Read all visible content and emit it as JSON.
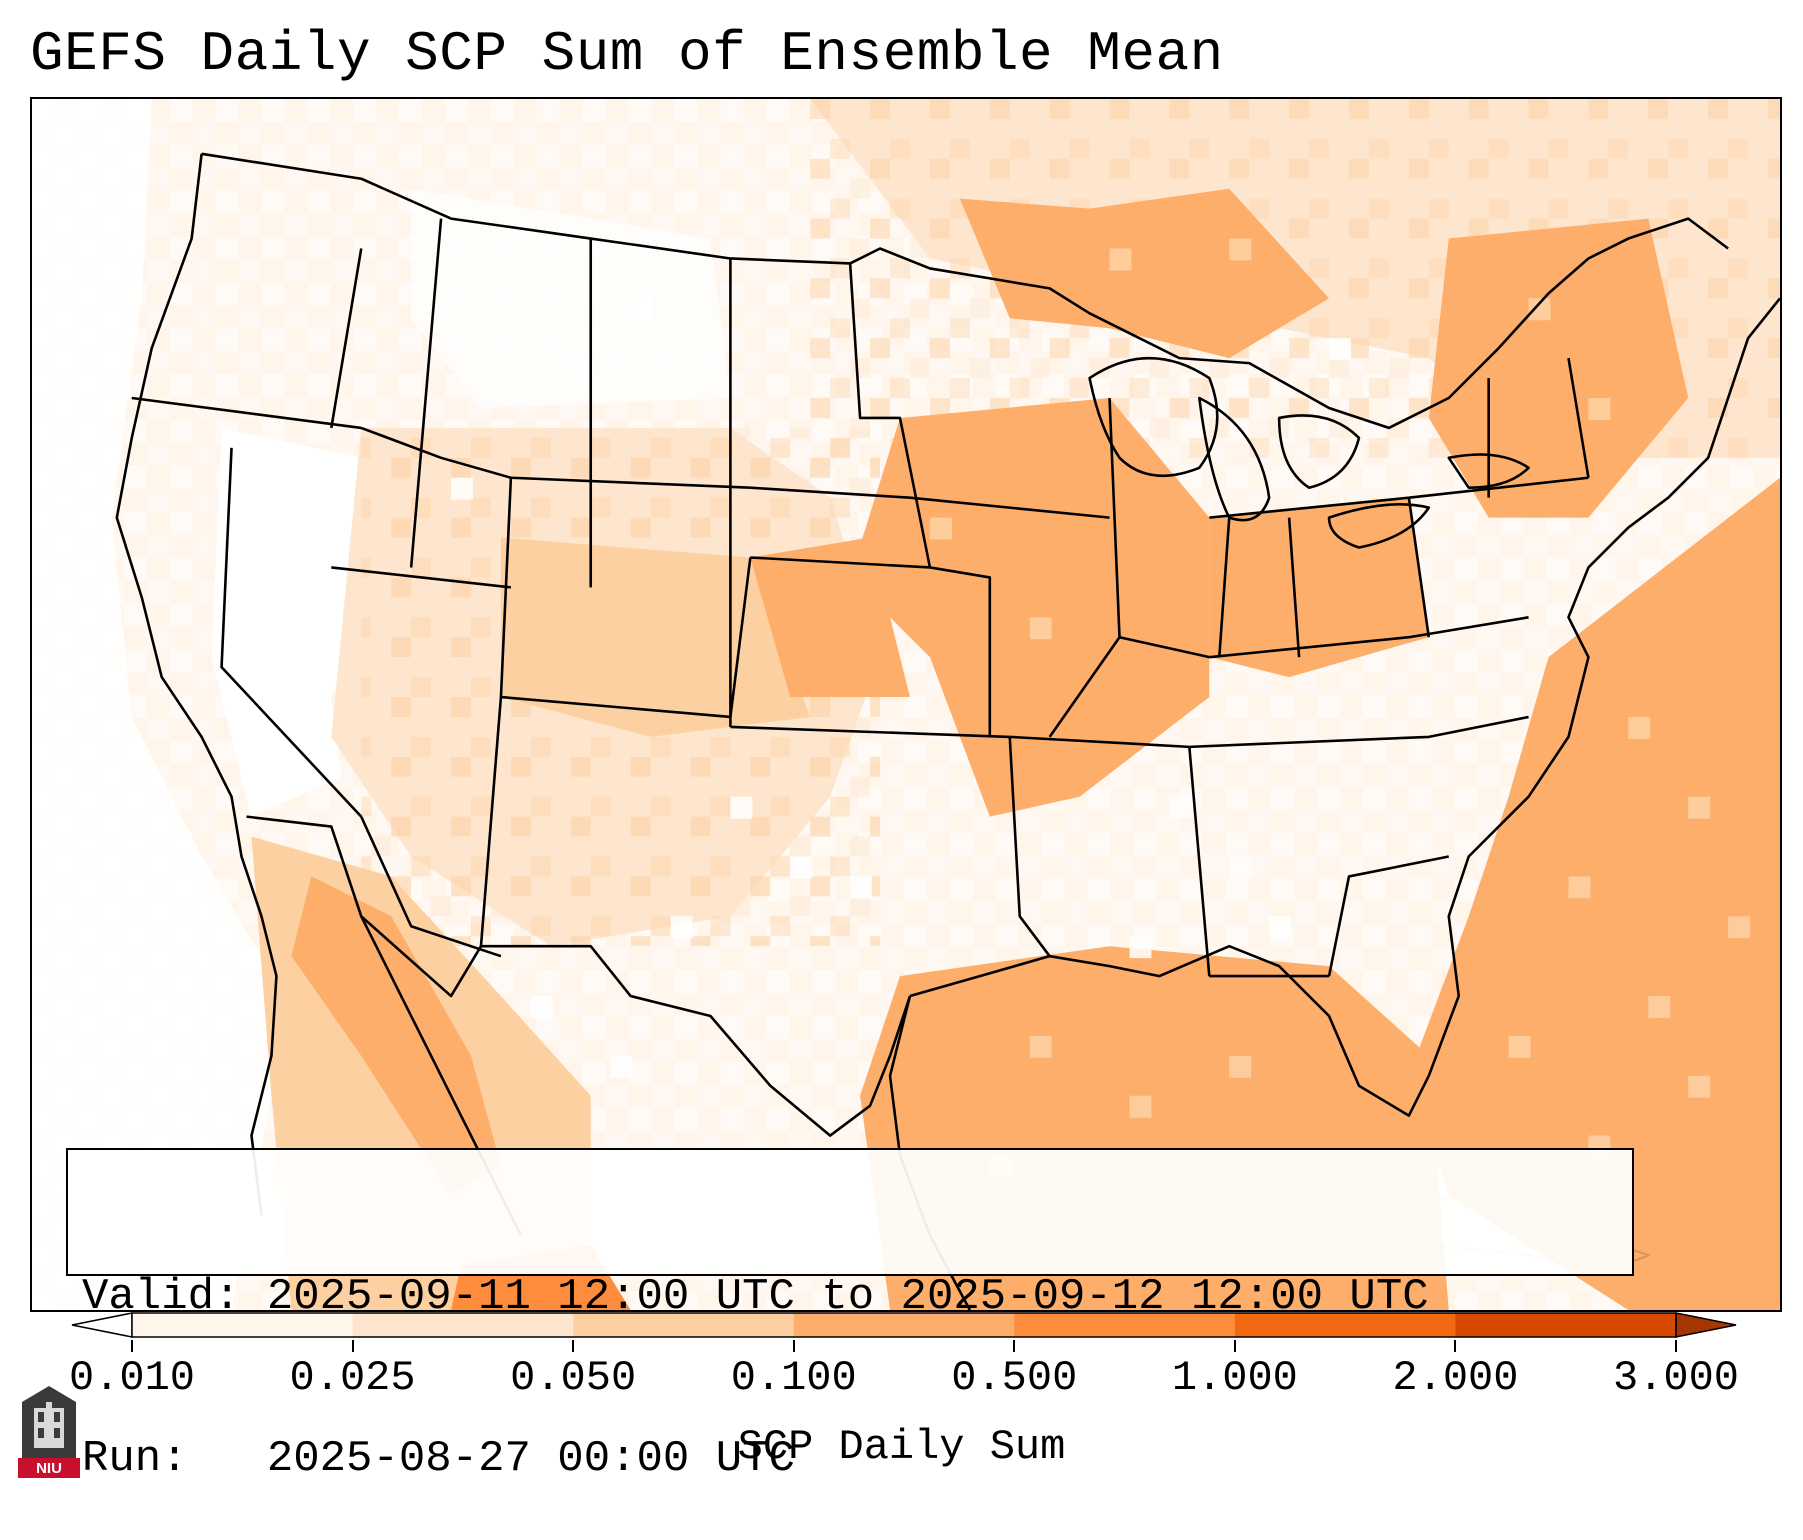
{
  "title": "GEFS Daily SCP Sum of Ensemble Mean",
  "info": {
    "valid_label": "Valid:",
    "valid_value": "2025-09-11 12:00 UTC to 2025-09-12 12:00 UTC",
    "run_label": "Run:",
    "run_value": "2025-08-27 00:00 UTC"
  },
  "colorbar": {
    "label": "SCP Daily Sum",
    "ticks": [
      "0.010",
      "0.025",
      "0.050",
      "0.100",
      "0.500",
      "1.000",
      "2.000",
      "3.000"
    ],
    "colors": [
      "#fff5eb",
      "#fee6ce",
      "#fdd0a2",
      "#fdae6b",
      "#fd8d3c",
      "#f16913",
      "#d94801"
    ],
    "under_color": "#ffffff",
    "over_color": "#a63603",
    "extend": "both"
  },
  "map": {
    "field_colors": {
      "none": "#ffffff",
      "very_low": "#fff5eb",
      "low": "#fee6ce",
      "moderate": "#fdd0a2",
      "high": "#fdae6b",
      "higher": "#fd8d3c"
    },
    "border_color": "#000000"
  },
  "logo": {
    "text": "NIU",
    "color": "#c8102e"
  }
}
